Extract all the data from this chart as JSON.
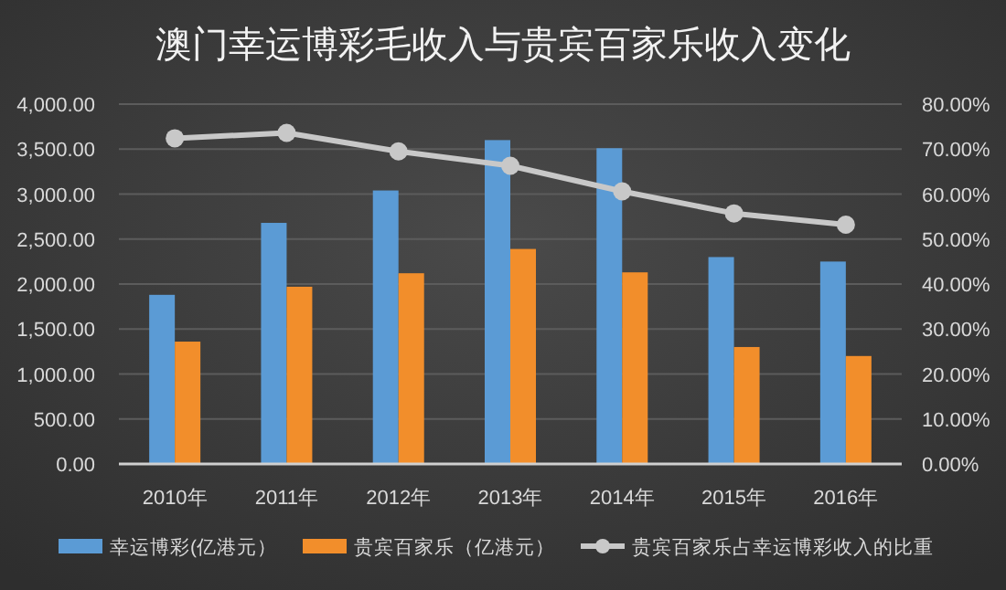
{
  "chart_data": {
    "type": "bar",
    "title": "澳门幸运博彩毛收入与贵宾百家乐收入变化",
    "categories": [
      "2010年",
      "2011年",
      "2012年",
      "2013年",
      "2014年",
      "2015年",
      "2016年"
    ],
    "series": [
      {
        "name": "幸运博彩(亿港元）",
        "color": "#5b9bd5",
        "values": [
          1880,
          2680,
          3040,
          3600,
          3510,
          2300,
          2250
        ]
      },
      {
        "name": "贵宾百家乐（亿港元）",
        "color": "#f28e2b",
        "values": [
          1360,
          1970,
          2120,
          2390,
          2130,
          1300,
          1200
        ]
      },
      {
        "name": "贵宾百家乐占幸运博彩收入的比重",
        "color": "#c8c8c8",
        "type": "line",
        "axis": "y2",
        "marker": "circle",
        "values": [
          72.4,
          73.6,
          69.5,
          66.3,
          60.6,
          55.7,
          53.2
        ]
      }
    ],
    "ylim": [
      0,
      4000
    ],
    "yticks": [
      {
        "value": 0,
        "label": "0.00"
      },
      {
        "value": 500,
        "label": "500.00"
      },
      {
        "value": 1000,
        "label": "1,000.00"
      },
      {
        "value": 1500,
        "label": "1,500.00"
      },
      {
        "value": 2000,
        "label": "2,000.00"
      },
      {
        "value": 2500,
        "label": "2,500.00"
      },
      {
        "value": 3000,
        "label": "3,000.00"
      },
      {
        "value": 3500,
        "label": "3,500.00"
      },
      {
        "value": 4000,
        "label": "4,000.00"
      }
    ],
    "y2lim": [
      0,
      80
    ],
    "y2ticks": [
      {
        "value": 0,
        "label": "0.00%"
      },
      {
        "value": 10,
        "label": "10.00%"
      },
      {
        "value": 20,
        "label": "20.00%"
      },
      {
        "value": 30,
        "label": "30.00%"
      },
      {
        "value": 40,
        "label": "40.00%"
      },
      {
        "value": 50,
        "label": "50.00%"
      },
      {
        "value": 60,
        "label": "60.00%"
      },
      {
        "value": 70,
        "label": "70.00%"
      },
      {
        "value": 80,
        "label": "80.00%"
      }
    ],
    "grid": "y",
    "legend": "bottom"
  }
}
